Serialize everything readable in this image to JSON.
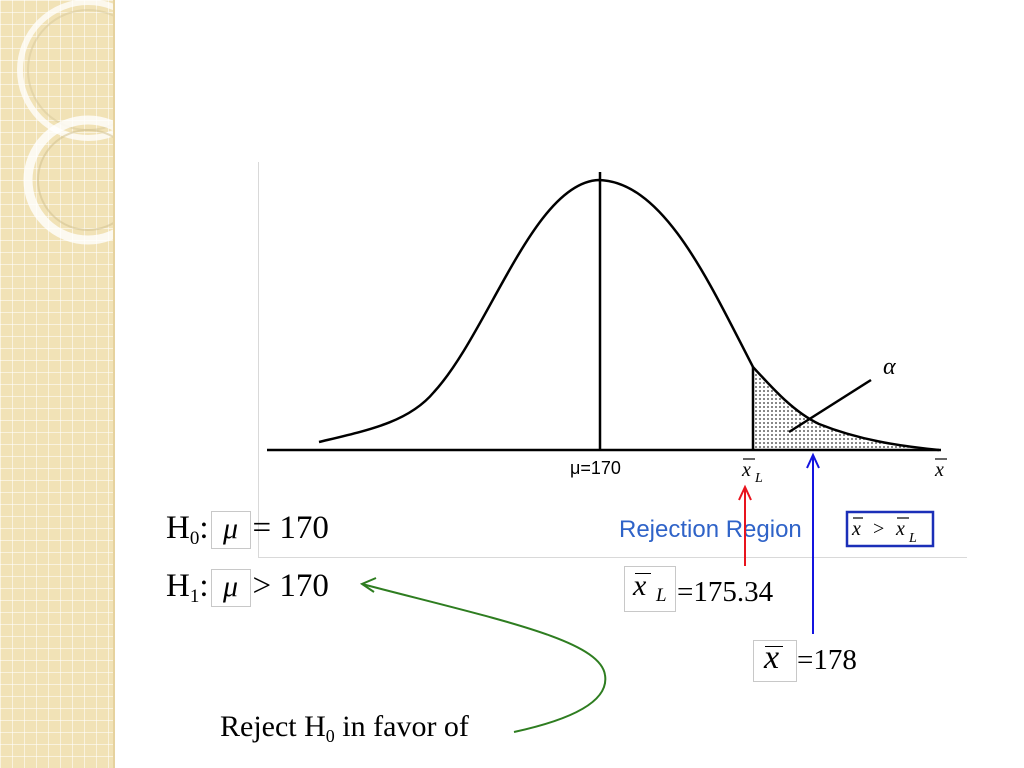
{
  "figure": {
    "mu_label": "μ=170",
    "xl_symbol": "x",
    "xl_subscript": "L",
    "xbar_axis_label": "x",
    "alpha_label": "α",
    "rejection_region_text": "Rejection Region",
    "rejection_condition_left": "x",
    "rejection_condition_op": ">",
    "rejection_condition_right": "x",
    "rejection_condition_subscript": "L"
  },
  "hypotheses": {
    "h0_letter": "H",
    "h0_sub": "0",
    "h0_colon": ":",
    "h0_mu": "μ",
    "h0_rel": "= 170",
    "h1_letter": "H",
    "h1_sub": "1",
    "h1_colon": ":",
    "h1_mu": "μ",
    "h1_rel": "> 170"
  },
  "values": {
    "xl_symbol": "x",
    "xl_subscript": "L",
    "xl_value": "=175.34",
    "xbar_symbol": "x",
    "xbar_value": "=178"
  },
  "conclusion": {
    "text_before": "Reject H",
    "sub": "0",
    "text_after": " in favor of"
  },
  "colors": {
    "xl_arrow": "#e8141e",
    "xbar_arrow": "#1414e0",
    "conclusion_arrow": "#2e7d20",
    "rejection_text": "#2f63c8",
    "condition_box": "#1b2fb8"
  }
}
